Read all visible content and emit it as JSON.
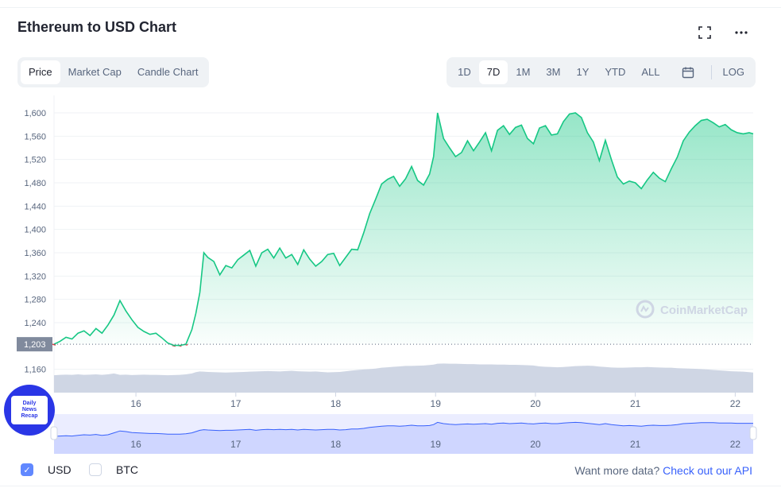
{
  "header": {
    "title": "Ethereum to USD Chart"
  },
  "icons": {
    "fullscreen": "fullscreen-icon",
    "more": "more-icon",
    "calendar": "calendar-icon",
    "watermark": "coinmarketcap-logo-icon"
  },
  "tabs_left": [
    {
      "label": "Price",
      "active": true
    },
    {
      "label": "Market Cap",
      "active": false
    },
    {
      "label": "Candle Chart",
      "active": false
    }
  ],
  "tabs_right": [
    {
      "label": "1D",
      "active": false
    },
    {
      "label": "7D",
      "active": true
    },
    {
      "label": "1M",
      "active": false
    },
    {
      "label": "3M",
      "active": false
    },
    {
      "label": "1Y",
      "active": false
    },
    {
      "label": "YTD",
      "active": false
    },
    {
      "label": "ALL",
      "active": false
    }
  ],
  "log_label": "LOG",
  "watermark": "CoinMarketCap",
  "badge": {
    "lines": [
      "Daily",
      "News",
      "Recap"
    ]
  },
  "footer": {
    "usd_label": "USD",
    "usd_checked": true,
    "btc_label": "BTC",
    "btc_checked": false,
    "api_prefix": "Want more data?",
    "api_link": "Check out our API"
  },
  "colors": {
    "up": "#16c784",
    "down": "#ea3943",
    "volume": "#cfd6e4",
    "navigator": "#3861fb"
  },
  "chart_data": {
    "type": "area",
    "title": "",
    "yticks": [
      1600,
      1560,
      1520,
      1480,
      1440,
      1400,
      1360,
      1320,
      1280,
      1240,
      1160
    ],
    "ylim": [
      1120,
      1630
    ],
    "reference_label": "1,203",
    "reference_value": 1203,
    "xticks": [
      "16",
      "17",
      "18",
      "19",
      "20",
      "21",
      "22"
    ],
    "xtick_values": [
      16,
      17,
      18,
      19,
      20,
      21,
      22
    ],
    "xlim": [
      15.18,
      22.18
    ],
    "grid": true,
    "series": [
      {
        "values_x": [
          15.18,
          15.24,
          15.3,
          15.36,
          15.42,
          15.48,
          15.54,
          15.6,
          15.66,
          15.72,
          15.78,
          15.84,
          15.9,
          15.96,
          16.02,
          16.08,
          16.14,
          16.2,
          16.26,
          16.32,
          16.38,
          16.44,
          16.5,
          16.56,
          16.6,
          16.64,
          16.68,
          16.72,
          16.78,
          16.84,
          16.9,
          16.96,
          17.02,
          17.08,
          17.14,
          17.2,
          17.26,
          17.32,
          17.38,
          17.44,
          17.5,
          17.56,
          17.62,
          17.68,
          17.74,
          17.8,
          17.86,
          17.92,
          17.98,
          18.04,
          18.1,
          18.16,
          18.22,
          18.28,
          18.34,
          18.4,
          18.46,
          18.52,
          18.58,
          18.64,
          18.7,
          18.76,
          18.82,
          18.88,
          18.94,
          18.98,
          19.02,
          19.08,
          19.14,
          19.2,
          19.26,
          19.32,
          19.38,
          19.44,
          19.5,
          19.56,
          19.62,
          19.68,
          19.74,
          19.8,
          19.86,
          19.92,
          19.98,
          20.04,
          20.1,
          20.16,
          20.22,
          20.28,
          20.34,
          20.4,
          20.46,
          20.52,
          20.58,
          20.64,
          20.7,
          20.76,
          20.82,
          20.88,
          20.94,
          21.0,
          21.06,
          21.12,
          21.18,
          21.24,
          21.3,
          21.36,
          21.42,
          21.48,
          21.54,
          21.6,
          21.66,
          21.72,
          21.78,
          21.84,
          21.9,
          21.96,
          22.02,
          22.08,
          22.14,
          22.18
        ],
        "values_y": [
          1203,
          1208,
          1215,
          1212,
          1222,
          1226,
          1218,
          1230,
          1222,
          1236,
          1253,
          1278,
          1260,
          1245,
          1232,
          1225,
          1220,
          1222,
          1214,
          1205,
          1201,
          1201,
          1203,
          1228,
          1256,
          1292,
          1360,
          1352,
          1345,
          1322,
          1338,
          1334,
          1348,
          1356,
          1364,
          1337,
          1360,
          1366,
          1351,
          1368,
          1351,
          1357,
          1340,
          1365,
          1349,
          1337,
          1345,
          1357,
          1359,
          1338,
          1352,
          1366,
          1365,
          1394,
          1427,
          1452,
          1478,
          1486,
          1491,
          1474,
          1487,
          1508,
          1484,
          1476,
          1495,
          1525,
          1600,
          1556,
          1540,
          1525,
          1532,
          1552,
          1535,
          1550,
          1566,
          1535,
          1570,
          1578,
          1563,
          1575,
          1579,
          1556,
          1547,
          1574,
          1578,
          1562,
          1564,
          1585,
          1598,
          1600,
          1592,
          1566,
          1550,
          1518,
          1553,
          1520,
          1490,
          1478,
          1483,
          1480,
          1470,
          1485,
          1498,
          1488,
          1482,
          1504,
          1524,
          1552,
          1567,
          1578,
          1587,
          1589,
          1583,
          1576,
          1580,
          1571,
          1566,
          1564,
          1566,
          1564
        ],
        "name": ""
      }
    ],
    "volume": [
      0.78,
      0.8,
      0.81,
      0.8,
      0.82,
      0.8,
      0.81,
      0.82,
      0.8,
      0.82,
      0.86,
      0.8,
      0.81,
      0.79,
      0.8,
      0.81,
      0.8,
      0.8,
      0.79,
      0.78,
      0.79,
      0.8,
      0.82,
      0.86,
      0.92,
      0.95,
      0.94,
      0.93,
      0.92,
      0.91,
      0.9,
      0.91,
      0.92,
      0.93,
      0.94,
      0.95,
      0.96,
      0.97,
      0.96,
      0.95,
      0.97,
      0.98,
      0.96,
      0.95,
      0.94,
      0.95,
      0.93,
      0.91,
      0.92,
      0.93,
      0.96,
      0.99,
      1.02,
      1.04,
      1.06,
      1.08,
      1.12,
      1.14,
      1.16,
      1.18,
      1.2,
      1.2,
      1.21,
      1.22,
      1.24,
      1.26,
      1.3,
      1.31,
      1.3,
      1.3,
      1.29,
      1.28,
      1.28,
      1.27,
      1.27,
      1.27,
      1.26,
      1.26,
      1.25,
      1.25,
      1.24,
      1.23,
      1.22,
      1.18,
      1.16,
      1.15,
      1.14,
      1.15,
      1.17,
      1.19,
      1.2,
      1.21,
      1.2,
      1.17,
      1.15,
      1.13,
      1.12,
      1.12,
      1.13,
      1.14,
      1.14,
      1.15,
      1.14,
      1.13,
      1.12,
      1.12,
      1.1,
      1.09,
      1.08,
      1.07,
      1.06,
      1.04,
      1.02,
      1.0,
      0.98,
      0.96,
      0.95,
      0.94,
      0.92,
      0.9
    ],
    "navigator": [
      0.55,
      0.56,
      0.57,
      0.56,
      0.58,
      0.6,
      0.59,
      0.61,
      0.58,
      0.6,
      0.66,
      0.72,
      0.7,
      0.67,
      0.66,
      0.65,
      0.64,
      0.64,
      0.63,
      0.62,
      0.62,
      0.62,
      0.63,
      0.66,
      0.7,
      0.74,
      0.76,
      0.75,
      0.74,
      0.73,
      0.74,
      0.74,
      0.75,
      0.76,
      0.77,
      0.74,
      0.76,
      0.77,
      0.76,
      0.77,
      0.76,
      0.77,
      0.75,
      0.77,
      0.76,
      0.75,
      0.76,
      0.77,
      0.77,
      0.75,
      0.76,
      0.78,
      0.78,
      0.8,
      0.83,
      0.85,
      0.87,
      0.88,
      0.88,
      0.87,
      0.88,
      0.9,
      0.88,
      0.88,
      0.89,
      0.92,
      0.99,
      0.95,
      0.93,
      0.92,
      0.93,
      0.94,
      0.93,
      0.94,
      0.95,
      0.93,
      0.96,
      0.97,
      0.95,
      0.96,
      0.97,
      0.95,
      0.94,
      0.96,
      0.97,
      0.95,
      0.95,
      0.97,
      0.98,
      0.99,
      0.98,
      0.96,
      0.94,
      0.92,
      0.95,
      0.92,
      0.9,
      0.88,
      0.89,
      0.88,
      0.87,
      0.89,
      0.9,
      0.89,
      0.89,
      0.9,
      0.92,
      0.95,
      0.96,
      0.97,
      0.98,
      0.98,
      0.98,
      0.97,
      0.97,
      0.97,
      0.96,
      0.96,
      0.96,
      0.96
    ]
  }
}
